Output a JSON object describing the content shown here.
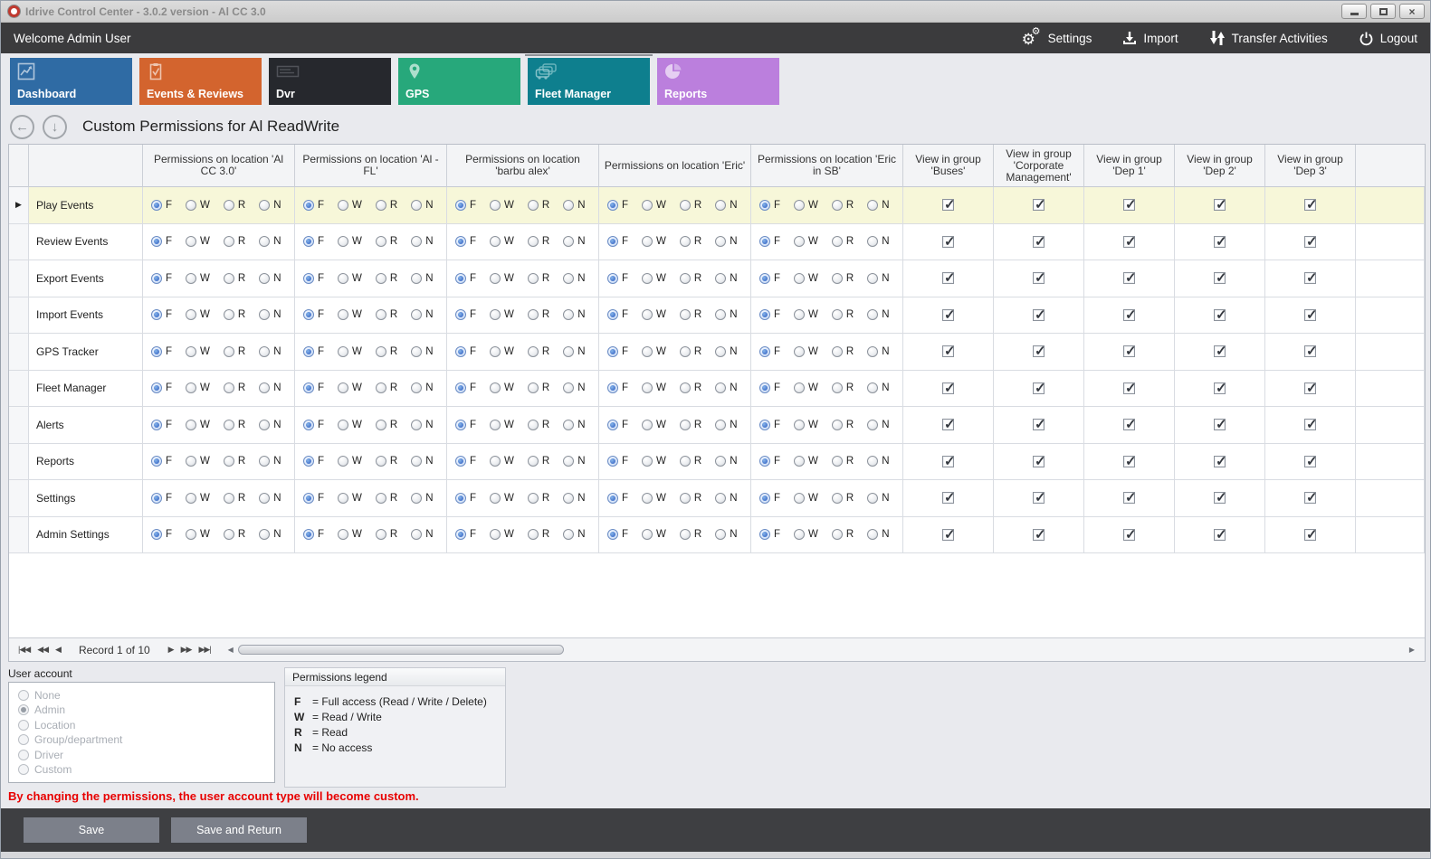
{
  "window": {
    "title": "Idrive Control Center - 3.0.2 version - Al CC 3.0",
    "buttons": [
      "minimize-icon",
      "maximize-icon",
      "close-icon"
    ]
  },
  "toolbar": {
    "welcome": "Welcome Admin User",
    "items": [
      {
        "label": "Settings",
        "icon": "gears-icon"
      },
      {
        "label": "Import",
        "icon": "import-icon"
      },
      {
        "label": "Transfer Activities",
        "icon": "transfer-arrows-icon"
      },
      {
        "label": "Logout",
        "icon": "power-icon"
      }
    ]
  },
  "tabs": [
    {
      "label": "Dashboard",
      "color": "#2f6ba4",
      "icon": "dashboard-chart-icon",
      "selected": false
    },
    {
      "label": "Events & Reviews",
      "color": "#d3642e",
      "icon": "clipboard-check-icon",
      "selected": false
    },
    {
      "label": "Dvr",
      "color": "#26282d",
      "icon": "dvr-device-icon",
      "selected": false
    },
    {
      "label": "GPS",
      "color": "#27a87b",
      "icon": "map-pin-icon",
      "selected": false
    },
    {
      "label": "Fleet Manager",
      "color": "#0e7f8e",
      "icon": "fleet-vehicles-icon",
      "selected": true
    },
    {
      "label": "Reports",
      "color": "#bb7fdd",
      "icon": "pie-chart-icon",
      "selected": false
    }
  ],
  "page": {
    "title": "Custom Permissions for Al ReadWrite"
  },
  "grid": {
    "permission_options": [
      "F",
      "W",
      "R",
      "N"
    ],
    "location_headers": [
      "Permissions on location 'Al CC 3.0'",
      "Permissions on location 'Al - FL'",
      "Permissions on location 'barbu alex'",
      "Permissions on location 'Eric'",
      "Permissions on location 'Eric in SB'"
    ],
    "group_headers": [
      "View in group 'Buses'",
      "View in group 'Corporate Management'",
      "View in group 'Dep 1'",
      "View in group 'Dep 2'",
      "View in group 'Dep 3'"
    ],
    "rows": [
      {
        "label": "Play Events",
        "selected": true,
        "permissions": [
          "F",
          "F",
          "F",
          "F",
          "F"
        ],
        "groups": [
          true,
          true,
          true,
          true,
          true
        ]
      },
      {
        "label": "Review Events",
        "selected": false,
        "permissions": [
          "F",
          "F",
          "F",
          "F",
          "F"
        ],
        "groups": [
          true,
          true,
          true,
          true,
          true
        ]
      },
      {
        "label": "Export Events",
        "selected": false,
        "permissions": [
          "F",
          "F",
          "F",
          "F",
          "F"
        ],
        "groups": [
          true,
          true,
          true,
          true,
          true
        ]
      },
      {
        "label": "Import Events",
        "selected": false,
        "permissions": [
          "F",
          "F",
          "F",
          "F",
          "F"
        ],
        "groups": [
          true,
          true,
          true,
          true,
          true
        ]
      },
      {
        "label": "GPS Tracker",
        "selected": false,
        "permissions": [
          "F",
          "F",
          "F",
          "F",
          "F"
        ],
        "groups": [
          true,
          true,
          true,
          true,
          true
        ]
      },
      {
        "label": "Fleet Manager",
        "selected": false,
        "permissions": [
          "F",
          "F",
          "F",
          "F",
          "F"
        ],
        "groups": [
          true,
          true,
          true,
          true,
          true
        ]
      },
      {
        "label": "Alerts",
        "selected": false,
        "permissions": [
          "F",
          "F",
          "F",
          "F",
          "F"
        ],
        "groups": [
          true,
          true,
          true,
          true,
          true
        ]
      },
      {
        "label": "Reports",
        "selected": false,
        "permissions": [
          "F",
          "F",
          "F",
          "F",
          "F"
        ],
        "groups": [
          true,
          true,
          true,
          true,
          true
        ]
      },
      {
        "label": "Settings",
        "selected": false,
        "permissions": [
          "F",
          "F",
          "F",
          "F",
          "F"
        ],
        "groups": [
          true,
          true,
          true,
          true,
          true
        ]
      },
      {
        "label": "Admin Settings",
        "selected": false,
        "permissions": [
          "F",
          "F",
          "F",
          "F",
          "F"
        ],
        "groups": [
          true,
          true,
          true,
          true,
          true
        ]
      }
    ]
  },
  "pager": {
    "first": "|◀◀",
    "prev_page": "◀◀",
    "prev": "◀",
    "label": "Record 1 of 10",
    "next": "▶",
    "next_page": "▶▶",
    "last": "▶▶|",
    "scroll_left": "◀",
    "scroll_right": "▶"
  },
  "user_account": {
    "label": "User account",
    "options": [
      {
        "label": "None",
        "selected": false
      },
      {
        "label": "Admin",
        "selected": true
      },
      {
        "label": "Location",
        "selected": false
      },
      {
        "label": "Group/department",
        "selected": false
      },
      {
        "label": "Driver",
        "selected": false
      },
      {
        "label": "Custom",
        "selected": false
      }
    ]
  },
  "legend": {
    "title": "Permissions legend",
    "entries": [
      {
        "key": "F",
        "desc": "= Full access (Read / Write / Delete)"
      },
      {
        "key": "W",
        "desc": "= Read / Write"
      },
      {
        "key": "R",
        "desc": "= Read"
      },
      {
        "key": "N",
        "desc": "= No access"
      }
    ]
  },
  "warning": "By changing the permissions, the user account type will become custom.",
  "actions": {
    "save": "Save",
    "save_and_return": "Save and Return"
  }
}
